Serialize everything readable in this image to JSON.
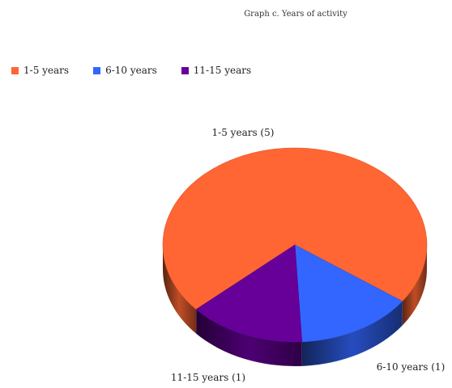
{
  "chart_data": {
    "type": "pie",
    "title": "Graph c. Years of activity",
    "legend_position": "top-left",
    "three_d": true,
    "slices": [
      {
        "label": "1-5 years",
        "value": 5,
        "color": "#FF6633",
        "data_label": "1-5 years (5)"
      },
      {
        "label": "6-10 years",
        "value": 1,
        "color": "#3366FF",
        "data_label": "6-10 years (1)"
      },
      {
        "label": "11-15 years",
        "value": 1,
        "color": "#660099",
        "data_label": "11-15 years (1)"
      }
    ]
  }
}
